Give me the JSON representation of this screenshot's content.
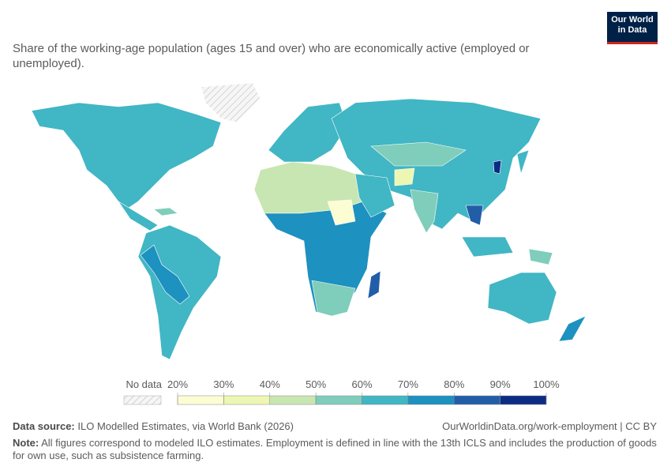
{
  "header": {
    "title": "Share of the working-age population (ages 15 and over) who are economically active (employed or unemployed).",
    "logo": [
      "Our World",
      "in Data"
    ]
  },
  "legend": {
    "no_data": "No data",
    "ticks": [
      {
        "value": 20,
        "label": "20%"
      },
      {
        "value": 30,
        "label": "30%"
      },
      {
        "value": 40,
        "label": "40%"
      },
      {
        "value": 50,
        "label": "50%"
      },
      {
        "value": 60,
        "label": "60%"
      },
      {
        "value": 70,
        "label": "70%"
      },
      {
        "value": 80,
        "label": "80%"
      },
      {
        "value": 90,
        "label": "90%"
      },
      {
        "value": 100,
        "label": "100%"
      }
    ],
    "colors": [
      "#fdfdd4",
      "#edf7b3",
      "#c8e6b1",
      "#7fcdbb",
      "#41b6c4",
      "#1d91c0",
      "#225ea8",
      "#0c2c84"
    ]
  },
  "footer": {
    "source_label": "Data source:",
    "source": "ILO Modelled Estimates, via World Bank (2026)",
    "url": "OurWorldinData.org/work-employment | CC BY",
    "note_label": "Note:",
    "note": "All figures correspond to modeled ILO estimates. Employment is defined in line with the 13th ICLS and includes the production of goods for own use, such as subsistence farming."
  }
}
